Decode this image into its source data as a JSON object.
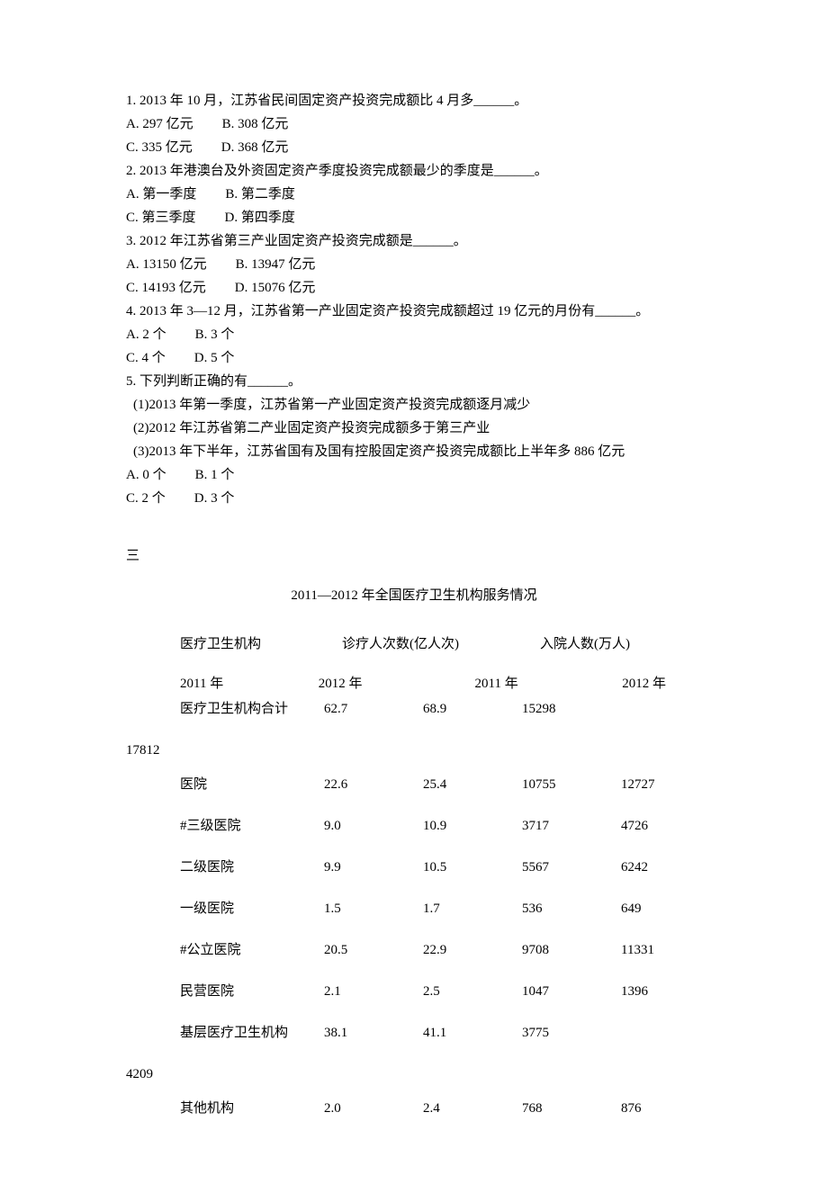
{
  "questions": [
    {
      "stem": "1. 2013 年 10 月，江苏省民间固定资产投资完成额比 4 月多______。",
      "opts_rows": [
        [
          "A. 297 亿元",
          "B. 308 亿元"
        ],
        [
          "C. 335 亿元",
          "D. 368 亿元"
        ]
      ]
    },
    {
      "stem": "2. 2013 年港澳台及外资固定资产季度投资完成额最少的季度是______。",
      "opts_rows": [
        [
          "A.  第一季度",
          "B.  第二季度"
        ],
        [
          "C.  第三季度",
          "D.  第四季度"
        ]
      ]
    },
    {
      "stem": "3. 2012 年江苏省第三产业固定资产投资完成额是______。",
      "opts_rows": [
        [
          "A. 13150 亿元",
          "B. 13947 亿元"
        ],
        [
          "C. 14193 亿元",
          "D. 15076 亿元"
        ]
      ]
    },
    {
      "stem": "4. 2013 年 3—12 月，江苏省第一产业固定资产投资完成额超过 19 亿元的月份有______。",
      "opts_rows": [
        [
          "A. 2 个",
          "B. 3 个"
        ],
        [
          "C. 4 个",
          "D. 5 个"
        ]
      ]
    },
    {
      "stem": "5.  下列判断正确的有______。",
      "subs": [
        "(1)2013 年第一季度，江苏省第一产业固定资产投资完成额逐月减少",
        "(2)2012 年江苏省第二产业固定资产投资完成额多于第三产业",
        "(3)2013 年下半年，江苏省国有及国有控股固定资产投资完成额比上半年多 886 亿元"
      ],
      "opts_rows": [
        [
          "A. 0 个",
          "B. 1 个"
        ],
        [
          "C. 2 个",
          "D. 3 个"
        ]
      ]
    }
  ],
  "section_label": "三",
  "table": {
    "title": "2011—2012 年全国医疗卫生机构服务情况",
    "group_headers": [
      "医疗卫生机构",
      "诊疗人次数(亿人次)",
      "入院人数(万人)"
    ],
    "year_headers": [
      "2011 年",
      "2012 年",
      "2011 年",
      "2012 年"
    ],
    "rows": [
      {
        "label": "医疗卫生机构合计",
        "v": [
          "62.7",
          "68.9",
          "15298",
          "17812"
        ],
        "wrap_last": true
      },
      {
        "label": "医院",
        "v": [
          "22.6",
          "25.4",
          "10755",
          "12727"
        ]
      },
      {
        "label": "#三级医院",
        "v": [
          "9.0",
          "10.9",
          "3717",
          "4726"
        ]
      },
      {
        "label": "二级医院",
        "v": [
          "9.9",
          "10.5",
          "5567",
          "6242"
        ]
      },
      {
        "label": "一级医院",
        "v": [
          "1.5",
          "1.7",
          "536",
          "649"
        ]
      },
      {
        "label": "#公立医院",
        "v": [
          "20.5",
          "22.9",
          "9708",
          "11331"
        ]
      },
      {
        "label": "民营医院",
        "v": [
          "2.1",
          "2.5",
          "1047",
          "1396"
        ]
      },
      {
        "label": "基层医疗卫生机构",
        "v": [
          "38.1",
          "41.1",
          "3775",
          "4209"
        ],
        "wrap_last": true
      },
      {
        "label": "其他机构",
        "v": [
          "2.0",
          "2.4",
          "768",
          "876"
        ]
      }
    ]
  }
}
